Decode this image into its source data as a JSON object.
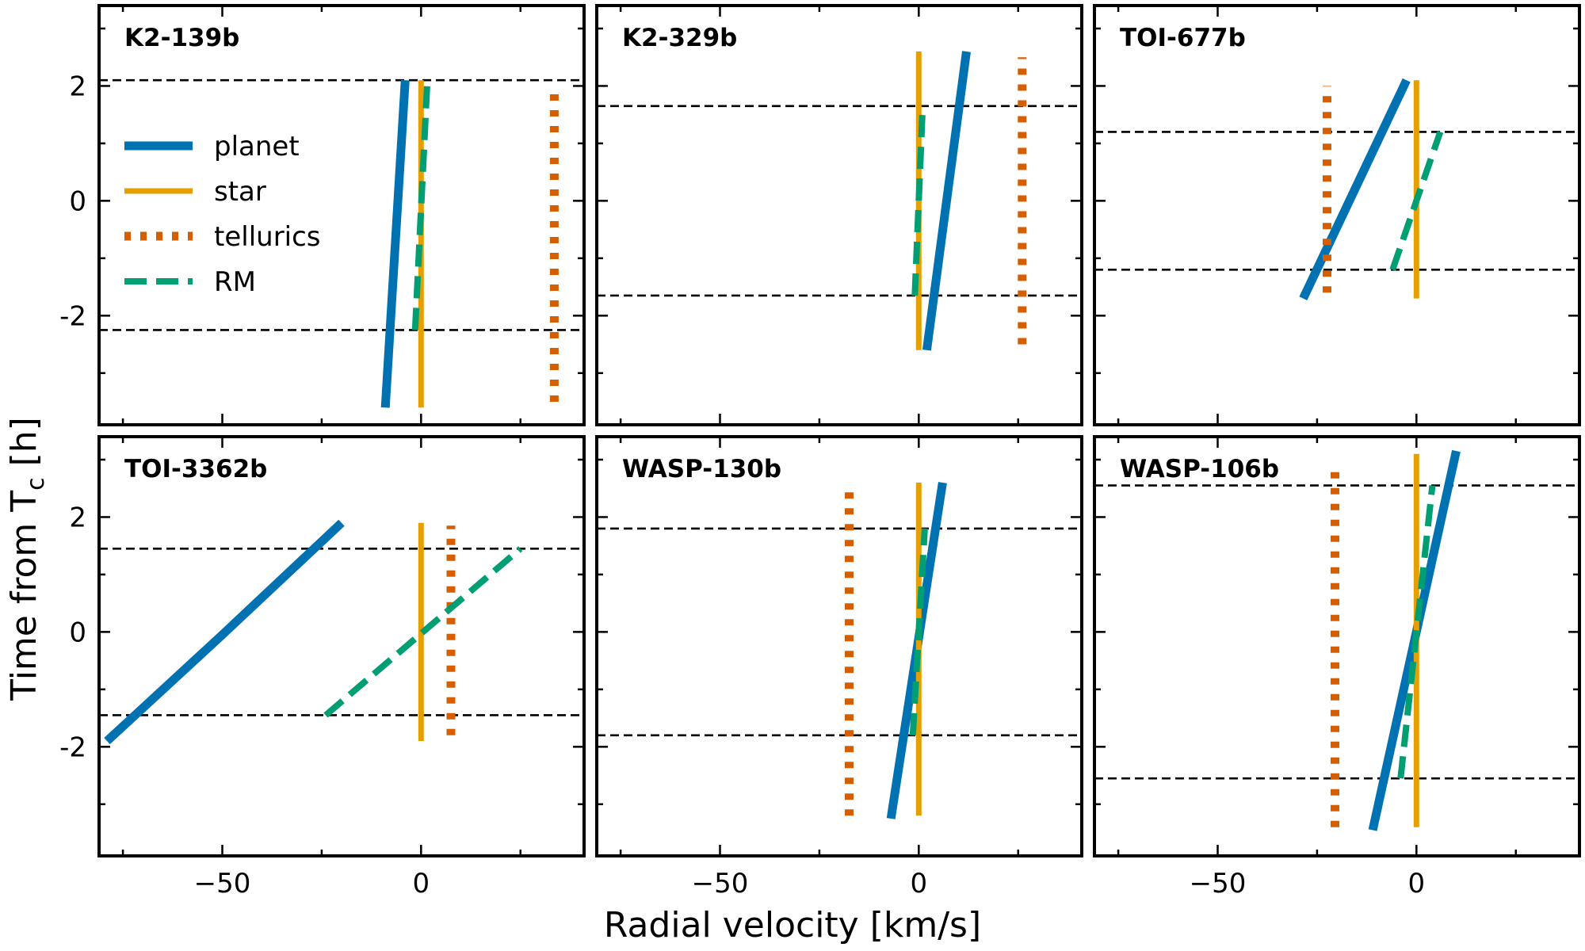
{
  "chart_data": {
    "type": "line",
    "xlabel": "Radial velocity [km/s]",
    "ylabel": "Time from T",
    "ylabel_sub": "c",
    "ylabel_suffix": " [h]",
    "xlim": [
      -81,
      41
    ],
    "ylim": [
      -3.9,
      3.4
    ],
    "xticks": [
      -50,
      0
    ],
    "xtick_labels": [
      "−50",
      "0"
    ],
    "yticks": [
      -2,
      0,
      2
    ],
    "ytick_labels": [
      "-2",
      "0",
      "2"
    ],
    "legend": {
      "location": "upper-left of first panel",
      "entries": [
        {
          "key": "planet",
          "label": "planet",
          "color": "#0072B2",
          "style": "solid"
        },
        {
          "key": "star",
          "label": "star",
          "color": "#E69F00",
          "style": "solid"
        },
        {
          "key": "tellurics",
          "label": "tellurics",
          "color": "#D55E00",
          "style": "dotted"
        },
        {
          "key": "rm",
          "label": "RM",
          "color": "#009E73",
          "style": "dashed"
        }
      ]
    },
    "panels": [
      {
        "title": "K2-139b",
        "transit_limits": [
          -2.25,
          2.1
        ],
        "planet": [
          [
            -9,
            -3.6
          ],
          [
            -4,
            2.1
          ]
        ],
        "star": [
          [
            0,
            -3.6
          ],
          [
            0,
            2.1
          ]
        ],
        "tellurics": [
          [
            33.5,
            -3.5
          ],
          [
            33.5,
            1.9
          ]
        ],
        "rm": [
          [
            -1.5,
            -2.25
          ],
          [
            1.5,
            2.0
          ]
        ]
      },
      {
        "title": "K2-329b",
        "transit_limits": [
          -1.65,
          1.65
        ],
        "planet": [
          [
            2,
            -2.6
          ],
          [
            12,
            2.6
          ]
        ],
        "star": [
          [
            0,
            -2.6
          ],
          [
            0,
            2.6
          ]
        ],
        "tellurics": [
          [
            26,
            -2.5
          ],
          [
            26,
            2.5
          ]
        ],
        "rm": [
          [
            -1,
            -1.65
          ],
          [
            1,
            1.65
          ]
        ]
      },
      {
        "title": "TOI-677b",
        "transit_limits": [
          -1.2,
          1.2
        ],
        "planet": [
          [
            -28.5,
            -1.7
          ],
          [
            -2.5,
            2.1
          ]
        ],
        "star": [
          [
            0,
            -1.7
          ],
          [
            0,
            2.1
          ]
        ],
        "tellurics": [
          [
            -22.5,
            -1.6
          ],
          [
            -22.5,
            2.0
          ]
        ],
        "rm": [
          [
            -6,
            -1.2
          ],
          [
            6,
            1.2
          ]
        ]
      },
      {
        "title": "TOI-3362b",
        "transit_limits": [
          -1.45,
          1.45
        ],
        "planet": [
          [
            -79,
            -1.9
          ],
          [
            -50,
            -0.05
          ],
          [
            -20,
            1.9
          ]
        ],
        "star": [
          [
            0,
            -1.9
          ],
          [
            0,
            1.9
          ]
        ],
        "tellurics": [
          [
            7.5,
            -1.8
          ],
          [
            7.5,
            1.85
          ]
        ],
        "rm": [
          [
            -24,
            -1.45
          ],
          [
            25,
            1.45
          ]
        ]
      },
      {
        "title": "WASP-130b",
        "transit_limits": [
          -1.8,
          1.8
        ],
        "planet": [
          [
            -7,
            -3.25
          ],
          [
            6,
            2.6
          ]
        ],
        "star": [
          [
            0,
            -3.2
          ],
          [
            0,
            2.6
          ]
        ],
        "tellurics": [
          [
            -17.5,
            -3.2
          ],
          [
            -17.5,
            2.55
          ]
        ],
        "rm": [
          [
            -1.5,
            -1.8
          ],
          [
            1.5,
            1.8
          ]
        ]
      },
      {
        "title": "WASP-106b",
        "transit_limits": [
          -2.55,
          2.55
        ],
        "planet": [
          [
            -11,
            -3.45
          ],
          [
            10,
            3.15
          ]
        ],
        "star": [
          [
            0,
            -3.4
          ],
          [
            0,
            3.1
          ]
        ],
        "tellurics": [
          [
            -20.5,
            -3.4
          ],
          [
            -20.5,
            2.85
          ]
        ],
        "rm": [
          [
            -4,
            -2.55
          ],
          [
            4,
            2.55
          ]
        ]
      }
    ]
  }
}
